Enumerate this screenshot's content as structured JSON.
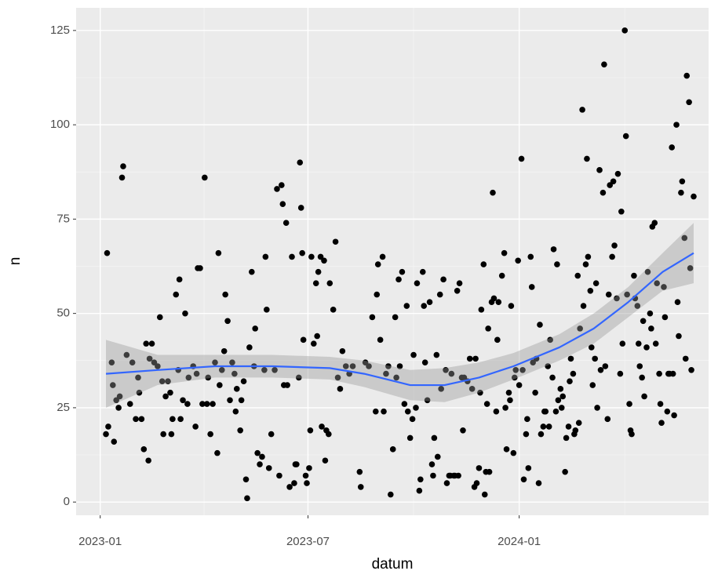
{
  "chart_data": {
    "type": "scatter",
    "x_label": "datum",
    "y_label": "n",
    "xlim": [
      -21,
      530
    ],
    "ylim": [
      -3.5,
      131
    ],
    "xticks": [
      {
        "value": 0,
        "label": "2023-01"
      },
      {
        "value": 181,
        "label": "2023-07"
      },
      {
        "value": 365,
        "label": "2024-01"
      }
    ],
    "yticks": [
      0,
      25,
      50,
      75,
      100,
      125
    ],
    "grid": true,
    "color": "#000000",
    "x": [
      5,
      6,
      7,
      10,
      11,
      12,
      14,
      16,
      17,
      19,
      20,
      23,
      26,
      28,
      31,
      33,
      34,
      36,
      38,
      40,
      42,
      43,
      45,
      47,
      50,
      52,
      54,
      55,
      57,
      59,
      61,
      62,
      63,
      66,
      68,
      69,
      70,
      72,
      74,
      76,
      77,
      81,
      83,
      84,
      85,
      87,
      89,
      91,
      93,
      94,
      96,
      98,
      100,
      102,
      103,
      104,
      106,
      108,
      109,
      111,
      113,
      115,
      117,
      118,
      119,
      122,
      123,
      125,
      127,
      128,
      130,
      132,
      134,
      135,
      137,
      139,
      141,
      143,
      144,
      145,
      147,
      149,
      152,
      154,
      156,
      158,
      159,
      160,
      162,
      163,
      165,
      167,
      169,
      170,
      171,
      173,
      174,
      175,
      176,
      177,
      179,
      180,
      182,
      183,
      184,
      186,
      188,
      189,
      190,
      192,
      193,
      195,
      196,
      197,
      199,
      200,
      203,
      205,
      207,
      209,
      211,
      214,
      217,
      220,
      226,
      227,
      231,
      234,
      237,
      240,
      241,
      242,
      244,
      246,
      247,
      249,
      251,
      253,
      255,
      257,
      258,
      260,
      261,
      263,
      265,
      267,
      268,
      270,
      272,
      273,
      275,
      276,
      278,
      279,
      281,
      282,
      283,
      285,
      287,
      289,
      290,
      291,
      293,
      294,
      296,
      297,
      299,
      301,
      302,
      304,
      305,
      306,
      308,
      309,
      311,
      312,
      313,
      315,
      316,
      317,
      320,
      322,
      324,
      326,
      327,
      328,
      330,
      331,
      332,
      334,
      335,
      336,
      337,
      338,
      339,
      341,
      342,
      343,
      345,
      346,
      347,
      350,
      352,
      353,
      354,
      356,
      357,
      358,
      360,
      361,
      362,
      364,
      365,
      367,
      368,
      369,
      371,
      372,
      373,
      375,
      376,
      377,
      379,
      380,
      382,
      383,
      384,
      386,
      387,
      388,
      390,
      391,
      392,
      394,
      395,
      397,
      398,
      399,
      401,
      402,
      403,
      405,
      406,
      408,
      409,
      410,
      412,
      413,
      414,
      416,
      417,
      418,
      420,
      421,
      423,
      424,
      425,
      427,
      428,
      429,
      431,
      432,
      433,
      435,
      436,
      438,
      439,
      440,
      442,
      443,
      444,
      446,
      447,
      448,
      450,
      451,
      453,
      454,
      455,
      457,
      458,
      459,
      461,
      462,
      463,
      465,
      466,
      468,
      469,
      470,
      472,
      473,
      474,
      476,
      477,
      479,
      480,
      481,
      483,
      484,
      485,
      487,
      488,
      489,
      491,
      492,
      494,
      495,
      496,
      498,
      499,
      500,
      502,
      503,
      504,
      506,
      507,
      509,
      510,
      511,
      513,
      514,
      515,
      517
    ],
    "values": [
      18,
      66,
      20,
      37,
      31,
      16,
      27,
      25,
      28,
      86,
      89,
      39,
      26,
      37,
      22,
      33,
      29,
      22,
      14,
      42,
      11,
      38,
      42,
      37,
      36,
      49,
      32,
      18,
      28,
      32,
      29,
      18,
      22,
      55,
      35,
      59,
      22,
      27,
      50,
      26,
      33,
      36,
      20,
      34,
      62,
      62,
      26,
      86,
      26,
      33,
      18,
      26,
      37,
      13,
      66,
      31,
      35,
      40,
      55,
      48,
      27,
      37,
      34,
      24,
      30,
      19,
      27,
      32,
      6,
      1,
      41,
      61,
      36,
      46,
      13,
      10,
      12,
      35,
      65,
      51,
      9,
      18,
      35,
      83,
      7,
      84,
      79,
      31,
      74,
      31,
      4,
      65,
      5,
      10,
      10,
      33,
      90,
      78,
      66,
      43,
      7,
      5,
      9,
      19,
      65,
      42,
      58,
      44,
      61,
      65,
      20,
      64,
      11,
      19,
      18,
      58,
      51,
      69,
      33,
      30,
      40,
      36,
      34,
      36,
      8,
      4,
      37,
      36,
      49,
      24,
      55,
      63,
      43,
      65,
      24,
      34,
      36,
      2,
      14,
      49,
      33,
      59,
      36,
      61,
      26,
      52,
      24,
      17,
      22,
      39,
      25,
      58,
      3,
      6,
      61,
      52,
      37,
      27,
      53,
      10,
      7,
      17,
      39,
      12,
      55,
      30,
      59,
      35,
      5,
      7,
      7,
      34,
      7,
      7,
      56,
      7,
      58,
      33,
      19,
      33,
      32,
      38,
      30,
      4,
      38,
      5,
      9,
      29,
      51,
      63,
      2,
      8,
      26,
      46,
      8,
      53,
      82,
      54,
      24,
      43,
      53,
      60,
      66,
      25,
      14,
      29,
      27,
      52,
      13,
      33,
      35,
      64,
      31,
      91,
      35,
      6,
      18,
      22,
      9,
      65,
      57,
      37,
      29,
      38,
      5,
      47,
      18,
      20,
      24,
      24,
      36,
      20,
      43,
      33,
      67,
      24,
      63,
      27,
      30,
      25,
      28,
      8,
      17,
      20,
      32,
      38,
      34,
      18,
      19,
      60,
      21,
      46,
      104,
      52,
      63,
      91,
      65,
      56,
      41,
      31,
      38,
      58,
      25,
      88,
      35,
      82,
      116,
      36,
      22,
      55,
      84,
      65,
      85,
      68,
      54,
      87,
      34,
      77,
      42,
      125,
      97,
      55,
      26,
      19,
      18,
      60,
      54,
      52,
      42,
      36,
      33,
      48,
      28,
      41,
      61,
      50,
      46,
      73,
      74,
      42,
      58,
      34,
      26,
      21,
      57,
      49,
      24,
      34,
      34,
      94,
      34,
      23,
      100,
      53,
      44,
      82,
      85,
      70,
      38,
      113,
      106,
      62,
      35,
      81
    ],
    "smooth": {
      "color": "#3366ff",
      "x": [
        5,
        50,
        100,
        150,
        200,
        230,
        270,
        300,
        330,
        360,
        400,
        430,
        460,
        490,
        517
      ],
      "values": [
        34,
        35,
        36,
        36,
        35.5,
        34,
        31,
        31,
        33,
        36,
        41,
        46,
        53,
        61,
        66
      ],
      "lower": [
        25,
        31,
        33,
        33,
        32.5,
        30.5,
        27,
        26.5,
        29,
        32.5,
        37.5,
        42,
        49,
        56,
        58
      ],
      "upper": [
        43,
        39,
        39,
        39,
        38.5,
        37.5,
        35,
        35.5,
        37,
        39.5,
        44.5,
        50,
        57,
        66,
        74
      ]
    }
  }
}
